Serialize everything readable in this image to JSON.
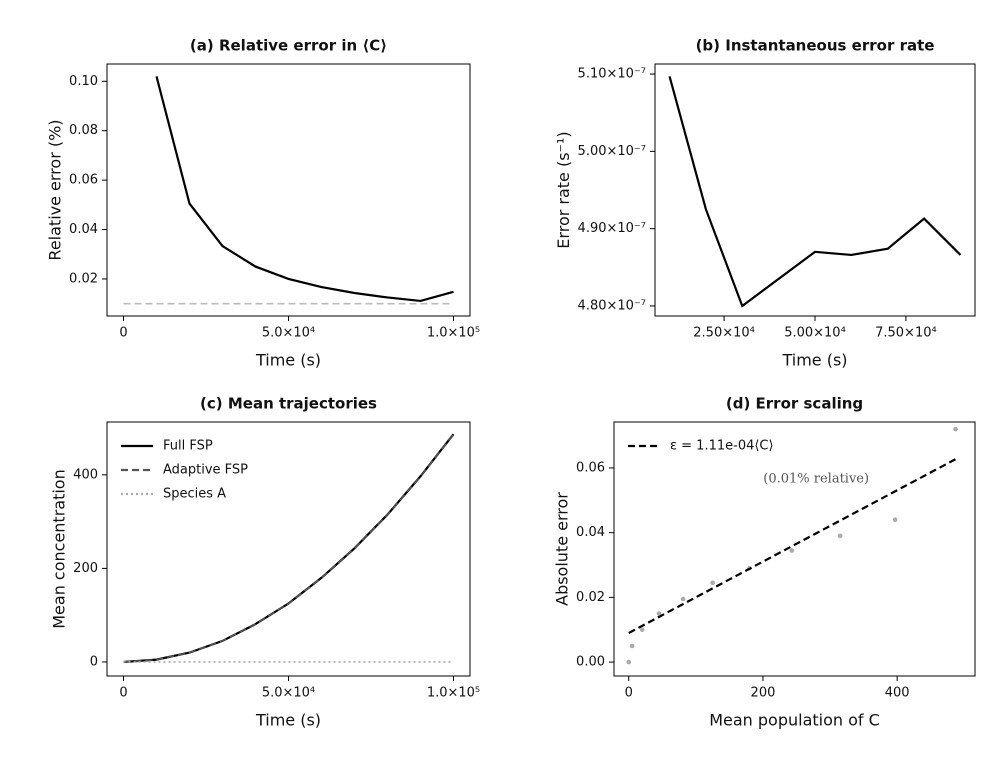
{
  "chart_data": [
    {
      "type": "line",
      "title": "(a) Relative error in ⟨C⟩",
      "xlabel": "Time (s)",
      "ylabel": "Relative error (%)",
      "xlim": [
        -5000,
        105000
      ],
      "ylim": [
        0.005,
        0.107
      ],
      "xticks": [
        0,
        {
          "value": 50000,
          "label": "5.0×10⁴"
        },
        {
          "value": 100000,
          "label": "1.0×10⁵"
        }
      ],
      "yticks": [
        0.02,
        0.04,
        0.06,
        0.08,
        {
          "value": 0.1,
          "label": "0.10"
        }
      ],
      "series": [
        {
          "color": "#000000",
          "style": "solid",
          "x": [
            10000,
            20000,
            30000,
            40000,
            50000,
            60000,
            70000,
            80000,
            90000,
            100000
          ],
          "values": [
            0.102,
            0.0505,
            0.0333,
            0.025,
            0.02,
            0.0167,
            0.0143,
            0.0125,
            0.0111,
            0.0148
          ]
        },
        {
          "color": "#bbbbbb",
          "style": "dashed",
          "x": [
            0,
            100000
          ],
          "values": [
            0.01,
            0.01
          ]
        }
      ]
    },
    {
      "type": "line",
      "title": "(b) Instantaneous error rate",
      "xlabel": "Time (s)",
      "ylabel": "Error rate (s⁻¹)",
      "xlim": [
        6000,
        94000
      ],
      "ylim": [
        4.787e-07,
        5.113e-07
      ],
      "xticks": [
        {
          "value": 25000,
          "label": "2.50×10⁴"
        },
        {
          "value": 50000,
          "label": "5.00×10⁴"
        },
        {
          "value": 75000,
          "label": "7.50×10⁴"
        }
      ],
      "yticks": [
        {
          "value": 4.8e-07,
          "label": "4.80×10⁻⁷"
        },
        {
          "value": 4.9e-07,
          "label": "4.90×10⁻⁷"
        },
        {
          "value": 5e-07,
          "label": "5.00×10⁻⁷"
        },
        {
          "value": 5.1e-07,
          "label": "5.10×10⁻⁷"
        }
      ],
      "series": [
        {
          "color": "#000000",
          "style": "solid",
          "x": [
            10000,
            20000,
            30000,
            40000,
            50000,
            60000,
            70000,
            80000,
            90000
          ],
          "values": [
            5.097e-07,
            4.925e-07,
            4.8e-07,
            4.835e-07,
            4.87e-07,
            4.866e-07,
            4.874e-07,
            4.913e-07,
            4.866e-07
          ]
        }
      ]
    },
    {
      "type": "line",
      "title": "(c) Mean trajectories",
      "xlabel": "Time (s)",
      "ylabel": "Mean concentration",
      "xlim": [
        -5000,
        105000
      ],
      "ylim": [
        -30,
        513
      ],
      "legend": "upper left",
      "xticks": [
        0,
        {
          "value": 50000,
          "label": "5.0×10⁴"
        },
        {
          "value": 100000,
          "label": "1.0×10⁵"
        }
      ],
      "yticks": [
        0,
        200,
        400
      ],
      "series": [
        {
          "name": "Full FSP",
          "color": "#000000",
          "style": "solid",
          "x": [
            0,
            10000,
            20000,
            30000,
            40000,
            50000,
            60000,
            70000,
            80000,
            90000,
            100000
          ],
          "values": [
            0,
            5,
            20,
            45,
            81,
            125,
            180,
            243,
            315,
            397,
            487
          ]
        },
        {
          "name": "Adaptive FSP",
          "color": "#555555",
          "style": "dashed",
          "x": [
            0,
            10000,
            20000,
            30000,
            40000,
            50000,
            60000,
            70000,
            80000,
            90000,
            100000
          ],
          "values": [
            0,
            5,
            20,
            45,
            81,
            125,
            180,
            243,
            315,
            397,
            487
          ]
        },
        {
          "name": "Species A",
          "color": "#aaaaaa",
          "style": "dotted",
          "x": [
            0,
            10000,
            20000,
            30000,
            40000,
            50000,
            60000,
            70000,
            80000,
            90000,
            100000
          ],
          "values": [
            0,
            0,
            0,
            0,
            0,
            0,
            0,
            0,
            0,
            0,
            0
          ]
        }
      ]
    },
    {
      "type": "scatter",
      "title": "(d) Error scaling",
      "xlabel": "Mean population of C",
      "ylabel": "Absolute error",
      "xlim": [
        -22,
        516
      ],
      "ylim": [
        -0.0043,
        0.0742
      ],
      "legend": "upper left",
      "annotation": "(0.01% relative)",
      "xticks": [
        0,
        200,
        400
      ],
      "yticks": [
        {
          "value": 0,
          "label": "0.00"
        },
        0.02,
        0.04,
        0.06
      ],
      "series": [
        {
          "color": "#aaaaaa",
          "style": "points",
          "x": [
            0,
            5,
            20,
            45,
            81,
            125,
            180,
            243,
            315,
            397,
            487
          ],
          "values": [
            0,
            0.005,
            0.01,
            0.015,
            0.0195,
            0.0245,
            0.029,
            0.0345,
            0.039,
            0.044,
            0.072
          ]
        },
        {
          "name": "ε = 1.11e-04⟨C⟩",
          "color": "#000000",
          "style": "dashed",
          "x": [
            0,
            487
          ],
          "values": [
            0.009,
            0.0627
          ]
        }
      ]
    }
  ]
}
